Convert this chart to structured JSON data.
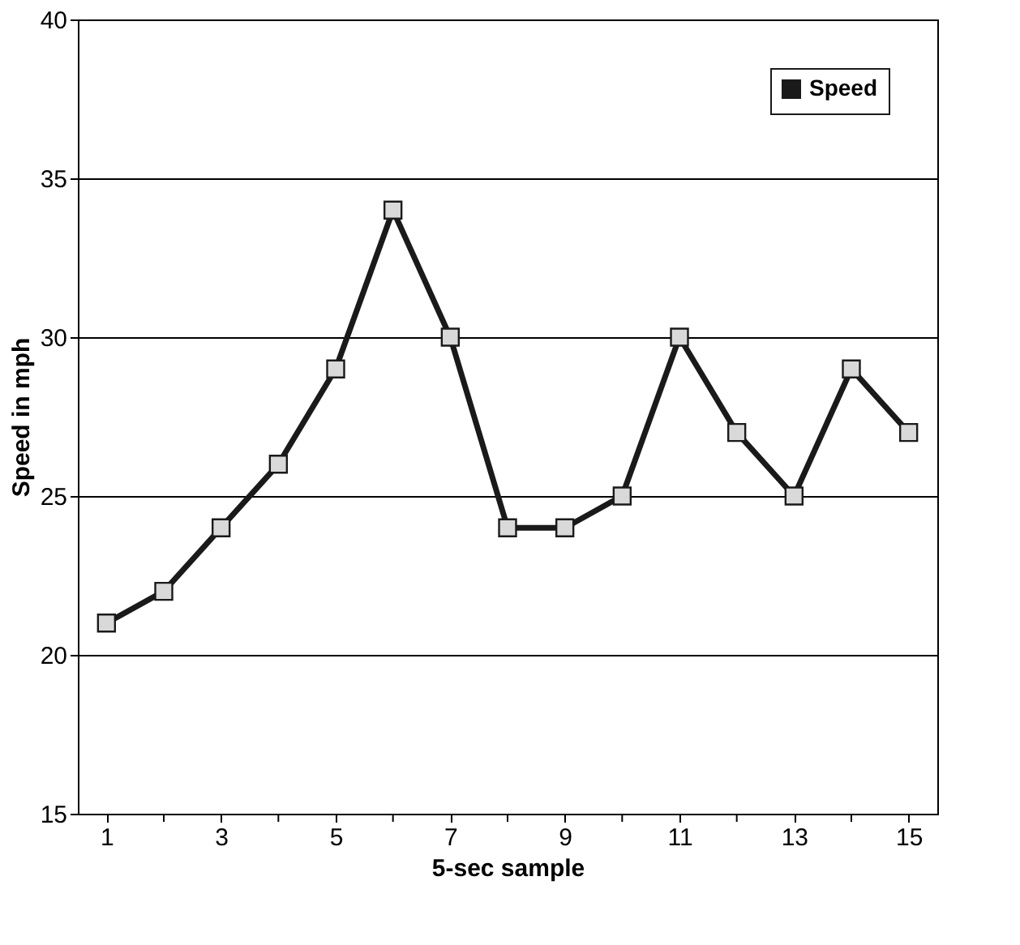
{
  "chart_data": {
    "type": "line",
    "xlabel": "5-sec sample",
    "ylabel": "Speed in mph",
    "x": [
      1,
      2,
      3,
      4,
      5,
      6,
      7,
      8,
      9,
      10,
      11,
      12,
      13,
      14,
      15
    ],
    "xlim": [
      0.5,
      15.5
    ],
    "xticks": [
      1,
      {
        "value": 2,
        "label": null
      },
      3,
      {
        "value": 4,
        "label": null
      },
      5,
      {
        "value": 6,
        "label": null
      },
      7,
      {
        "value": 8,
        "label": null
      },
      9,
      {
        "value": 10,
        "label": null
      },
      11,
      {
        "value": 12,
        "label": null
      },
      13,
      {
        "value": 14,
        "label": null
      },
      15
    ],
    "series": [
      {
        "name": "Speed",
        "color": "#1a1a1a",
        "values": [
          21,
          22,
          24,
          26,
          29,
          34,
          30,
          24,
          24,
          25,
          30,
          27,
          25,
          29,
          27
        ]
      }
    ],
    "ylim": [
      15,
      40
    ],
    "yticks": [
      15,
      20,
      25,
      30,
      35,
      40
    ],
    "grid": "y",
    "legend": "top right",
    "marker": "square",
    "line_style": "solid"
  }
}
